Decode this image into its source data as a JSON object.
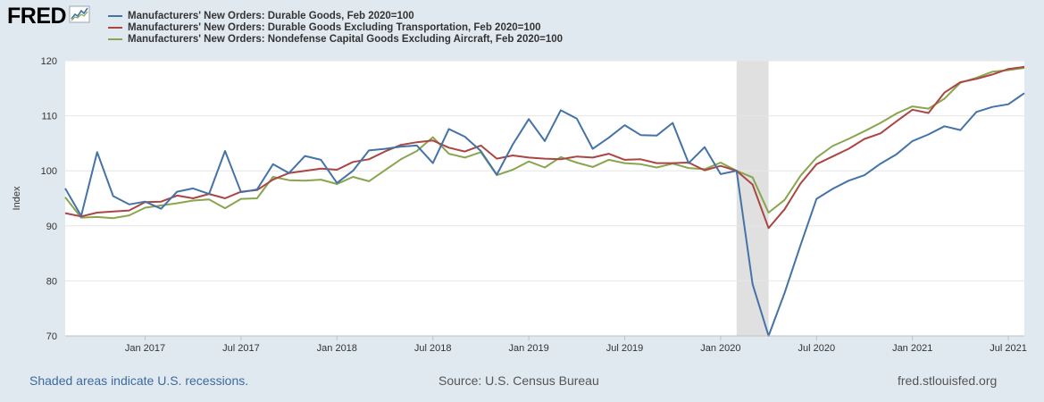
{
  "header": {
    "logo_text": "FRED",
    "logo_icon": "sparkline-chart-icon"
  },
  "legend": {
    "items": [
      {
        "label": "Manufacturers' New Orders: Durable Goods, Feb 2020=100",
        "color": "#4572a7"
      },
      {
        "label": "Manufacturers' New Orders: Durable Goods Excluding Transportation, Feb 2020=100",
        "color": "#aa4643"
      },
      {
        "label": "Manufacturers' New Orders: Nondefense Capital Goods Excluding Aircraft, Feb 2020=100",
        "color": "#89a54e"
      }
    ]
  },
  "footer": {
    "recession_note": "Shaded areas indicate U.S. recessions.",
    "source": "Source: U.S. Census Bureau",
    "site": "fred.stlouisfed.org"
  },
  "chart_data": {
    "type": "line",
    "ylabel": "Index",
    "xlabel": "",
    "ylim": [
      70,
      120
    ],
    "yticks": [
      70,
      80,
      90,
      100,
      110,
      120
    ],
    "grid": "horizontal",
    "xlim": [
      "2016-08",
      "2021-08"
    ],
    "xticks": [
      {
        "label": "Jan 2017",
        "date": "2017-01"
      },
      {
        "label": "Jul 2017",
        "date": "2017-07"
      },
      {
        "label": "Jan 2018",
        "date": "2018-01"
      },
      {
        "label": "Jul 2018",
        "date": "2018-07"
      },
      {
        "label": "Jan 2019",
        "date": "2019-01"
      },
      {
        "label": "Jul 2019",
        "date": "2019-07"
      },
      {
        "label": "Jan 2020",
        "date": "2020-01"
      },
      {
        "label": "Jul 2020",
        "date": "2020-07"
      },
      {
        "label": "Jan 2021",
        "date": "2021-01"
      },
      {
        "label": "Jul 2021",
        "date": "2021-07"
      }
    ],
    "recession": {
      "start": "2020-02",
      "end": "2020-04",
      "color": "#e0e0e0"
    },
    "x": [
      "2016-08",
      "2016-09",
      "2016-10",
      "2016-11",
      "2016-12",
      "2017-01",
      "2017-02",
      "2017-03",
      "2017-04",
      "2017-05",
      "2017-06",
      "2017-07",
      "2017-08",
      "2017-09",
      "2017-10",
      "2017-11",
      "2017-12",
      "2018-01",
      "2018-02",
      "2018-03",
      "2018-04",
      "2018-05",
      "2018-06",
      "2018-07",
      "2018-08",
      "2018-09",
      "2018-10",
      "2018-11",
      "2018-12",
      "2019-01",
      "2019-02",
      "2019-03",
      "2019-04",
      "2019-05",
      "2019-06",
      "2019-07",
      "2019-08",
      "2019-09",
      "2019-10",
      "2019-11",
      "2019-12",
      "2020-01",
      "2020-02",
      "2020-03",
      "2020-04",
      "2020-05",
      "2020-06",
      "2020-07",
      "2020-08",
      "2020-09",
      "2020-10",
      "2020-11",
      "2020-12",
      "2021-01",
      "2021-02",
      "2021-03",
      "2021-04",
      "2021-05",
      "2021-06",
      "2021-07",
      "2021-08"
    ],
    "series": [
      {
        "name": "Manufacturers' New Orders: Durable Goods, Feb 2020=100",
        "color": "#4572a7",
        "values": [
          96.8,
          91.8,
          103.4,
          95.4,
          93.9,
          94.4,
          93.1,
          96.2,
          96.8,
          95.8,
          103.6,
          96.1,
          96.6,
          101.2,
          99.6,
          102.7,
          102.0,
          97.8,
          100.0,
          103.7,
          104.0,
          104.4,
          104.6,
          101.4,
          107.6,
          106.2,
          103.6,
          99.3,
          104.8,
          109.4,
          105.4,
          111.0,
          109.5,
          104.0,
          106.0,
          108.3,
          106.5,
          106.4,
          108.7,
          101.4,
          104.3,
          99.4,
          100.0,
          79.4,
          70.0,
          77.8,
          86.5,
          94.9,
          96.7,
          98.2,
          99.2,
          101.3,
          103.0,
          105.4,
          106.6,
          108.1,
          107.4,
          110.7,
          111.6,
          112.1,
          114.1
        ]
      },
      {
        "name": "Manufacturers' New Orders: Durable Goods Excluding Transportation, Feb 2020=100",
        "color": "#aa4643",
        "values": [
          92.3,
          91.7,
          92.4,
          92.6,
          92.8,
          94.3,
          94.4,
          95.5,
          95.0,
          95.8,
          95.0,
          96.2,
          96.5,
          98.4,
          99.6,
          100.0,
          100.4,
          100.2,
          101.6,
          102.1,
          103.5,
          104.7,
          105.2,
          105.5,
          104.2,
          103.5,
          104.6,
          102.2,
          102.8,
          102.4,
          102.2,
          102.1,
          102.6,
          102.4,
          103.1,
          102.0,
          102.1,
          101.4,
          101.4,
          101.5,
          100.1,
          100.9,
          100.0,
          97.5,
          89.6,
          93.0,
          97.7,
          101.2,
          102.6,
          104.0,
          105.8,
          106.8,
          109.0,
          111.1,
          110.5,
          114.2,
          116.1,
          116.7,
          117.5,
          118.5,
          118.9
        ]
      },
      {
        "name": "Manufacturers' New Orders: Nondefense Capital Goods Excluding Aircraft, Feb 2020=100",
        "color": "#89a54e",
        "values": [
          95.2,
          91.5,
          91.6,
          91.4,
          91.9,
          93.3,
          93.7,
          94.1,
          94.6,
          94.8,
          93.2,
          94.9,
          95.0,
          98.9,
          98.3,
          98.2,
          98.4,
          97.6,
          98.9,
          98.1,
          100.1,
          102.1,
          103.6,
          106.1,
          103.1,
          102.4,
          103.4,
          99.2,
          100.2,
          101.7,
          100.6,
          102.5,
          101.5,
          100.7,
          102.0,
          101.4,
          101.2,
          100.6,
          101.3,
          100.5,
          100.3,
          101.5,
          100.0,
          98.8,
          92.4,
          94.7,
          99.1,
          102.4,
          104.5,
          105.8,
          107.2,
          108.7,
          110.4,
          111.7,
          111.3,
          113.1,
          116.0,
          116.9,
          118.0,
          118.3,
          118.7
        ]
      }
    ]
  }
}
